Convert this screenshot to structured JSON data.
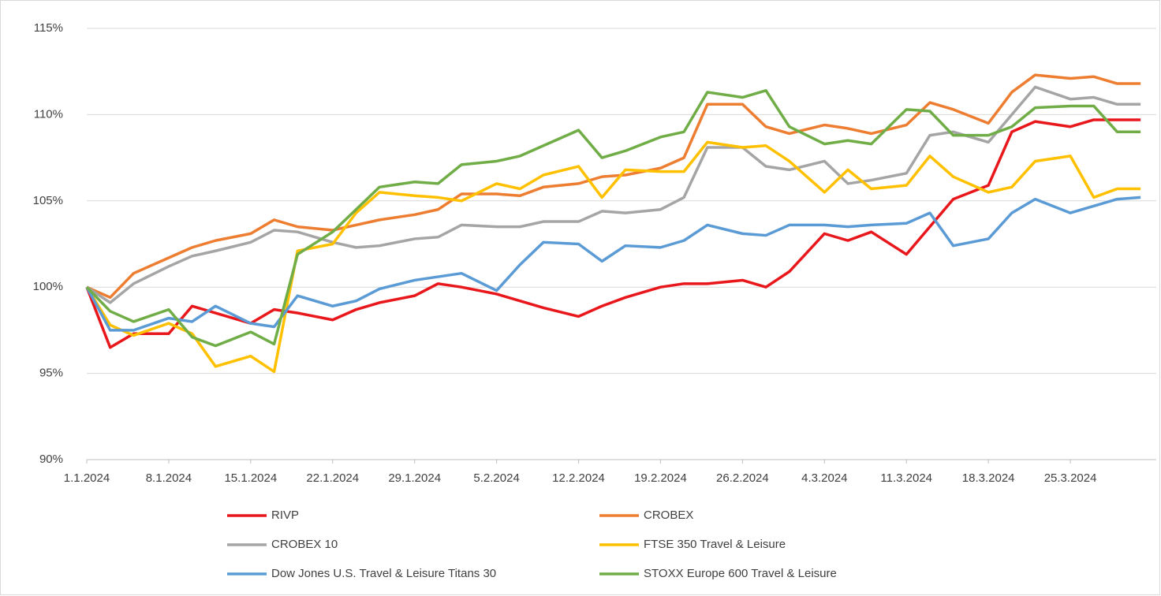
{
  "chart_data": {
    "type": "line",
    "x": [
      0,
      2,
      4,
      7,
      9,
      11,
      14,
      16,
      18,
      21,
      23,
      25,
      28,
      30,
      32,
      35,
      37,
      39,
      42,
      44,
      46,
      49,
      51,
      53,
      56,
      58,
      60,
      63,
      65,
      67,
      70,
      72,
      74,
      77,
      79,
      81,
      84,
      86,
      88,
      90
    ],
    "xlim": [
      0,
      91
    ],
    "xticks": [
      {
        "value": 0,
        "label": "1.1.2024"
      },
      {
        "value": 7,
        "label": "8.1.2024"
      },
      {
        "value": 14,
        "label": "15.1.2024"
      },
      {
        "value": 21,
        "label": "22.1.2024"
      },
      {
        "value": 28,
        "label": "29.1.2024"
      },
      {
        "value": 35,
        "label": "5.2.2024"
      },
      {
        "value": 42,
        "label": "12.2.2024"
      },
      {
        "value": 49,
        "label": "19.2.2024"
      },
      {
        "value": 56,
        "label": "26.2.2024"
      },
      {
        "value": 63,
        "label": "4.3.2024"
      },
      {
        "value": 70,
        "label": "11.3.2024"
      },
      {
        "value": 77,
        "label": "18.3.2024"
      },
      {
        "value": 84,
        "label": "25.3.2024"
      }
    ],
    "ylim": [
      90,
      115
    ],
    "yticks": [
      {
        "value": 90,
        "label": "90%"
      },
      {
        "value": 95,
        "label": "95%"
      },
      {
        "value": 100,
        "label": "100%"
      },
      {
        "value": 105,
        "label": "105%"
      },
      {
        "value": 110,
        "label": "110%"
      },
      {
        "value": 115,
        "label": "115%"
      }
    ],
    "grid": true,
    "legend": "bottom",
    "series": [
      {
        "name": "RIVP",
        "color": "#e8171b",
        "values": [
          100,
          96.5,
          97.3,
          97.3,
          98.9,
          98.5,
          97.9,
          98.7,
          98.5,
          98.1,
          98.7,
          99.1,
          99.5,
          100.2,
          100.0,
          99.6,
          99.2,
          98.8,
          98.3,
          98.9,
          99.4,
          100.0,
          100.2,
          100.2,
          100.4,
          100.0,
          100.9,
          103.1,
          102.7,
          103.2,
          101.9,
          103.5,
          105.1,
          105.9,
          109.0,
          109.6,
          109.3,
          109.7,
          109.7,
          109.7
        ]
      },
      {
        "name": "CROBEX",
        "color": "#ed7d31",
        "values": [
          100,
          99.4,
          100.8,
          101.7,
          102.3,
          102.7,
          103.1,
          103.9,
          103.5,
          103.3,
          103.6,
          103.9,
          104.2,
          104.5,
          105.4,
          105.4,
          105.3,
          105.8,
          106.0,
          106.4,
          106.5,
          106.9,
          107.5,
          110.6,
          110.6,
          109.3,
          108.9,
          109.4,
          109.2,
          108.9,
          109.4,
          110.7,
          110.3,
          109.5,
          111.3,
          112.3,
          112.1,
          112.2,
          111.8,
          111.8
        ]
      },
      {
        "name": "CROBEX 10",
        "color": "#a5a5a5",
        "values": [
          100,
          99.1,
          100.2,
          101.2,
          101.8,
          102.1,
          102.6,
          103.3,
          103.2,
          102.6,
          102.3,
          102.4,
          102.8,
          102.9,
          103.6,
          103.5,
          103.5,
          103.8,
          103.8,
          104.4,
          104.3,
          104.5,
          105.2,
          108.1,
          108.1,
          107.0,
          106.8,
          107.3,
          106.0,
          106.2,
          106.6,
          108.8,
          109.0,
          108.4,
          110.0,
          111.6,
          110.9,
          111.0,
          110.6,
          110.6
        ]
      },
      {
        "name": "FTSE 350 Travel & Leisure",
        "color": "#ffc000",
        "values": [
          100,
          97.8,
          97.2,
          97.9,
          97.3,
          95.4,
          96.0,
          95.1,
          102.1,
          102.5,
          104.3,
          105.5,
          105.3,
          105.2,
          105.0,
          106.0,
          105.7,
          106.5,
          107.0,
          105.2,
          106.8,
          106.7,
          106.7,
          108.4,
          108.1,
          108.2,
          107.3,
          105.5,
          106.8,
          105.7,
          105.9,
          107.6,
          106.4,
          105.5,
          105.8,
          107.3,
          107.6,
          105.2,
          105.7,
          105.7
        ]
      },
      {
        "name": "Dow Jones U.S. Travel & Leisure Titans 30",
        "color": "#5b9bd5",
        "values": [
          100,
          97.5,
          97.5,
          98.2,
          98.0,
          98.9,
          97.9,
          97.7,
          99.5,
          98.9,
          99.2,
          99.9,
          100.4,
          100.6,
          100.8,
          99.8,
          101.3,
          102.6,
          102.5,
          101.5,
          102.4,
          102.3,
          102.7,
          103.6,
          103.1,
          103.0,
          103.6,
          103.6,
          103.5,
          103.6,
          103.7,
          104.3,
          102.4,
          102.8,
          104.3,
          105.1,
          104.3,
          104.7,
          105.1,
          105.2
        ]
      },
      {
        "name": "STOXX Europe 600 Travel & Leisure",
        "color": "#70ad47",
        "values": [
          100,
          98.6,
          98.0,
          98.7,
          97.1,
          96.6,
          97.4,
          96.7,
          101.9,
          103.2,
          104.5,
          105.8,
          106.1,
          106.0,
          107.1,
          107.3,
          107.6,
          108.2,
          109.1,
          107.5,
          107.9,
          108.7,
          109.0,
          111.3,
          111.0,
          111.4,
          109.3,
          108.3,
          108.5,
          108.3,
          110.3,
          110.2,
          108.8,
          108.8,
          109.3,
          110.4,
          110.5,
          110.5,
          109.0,
          109.0
        ]
      }
    ]
  }
}
